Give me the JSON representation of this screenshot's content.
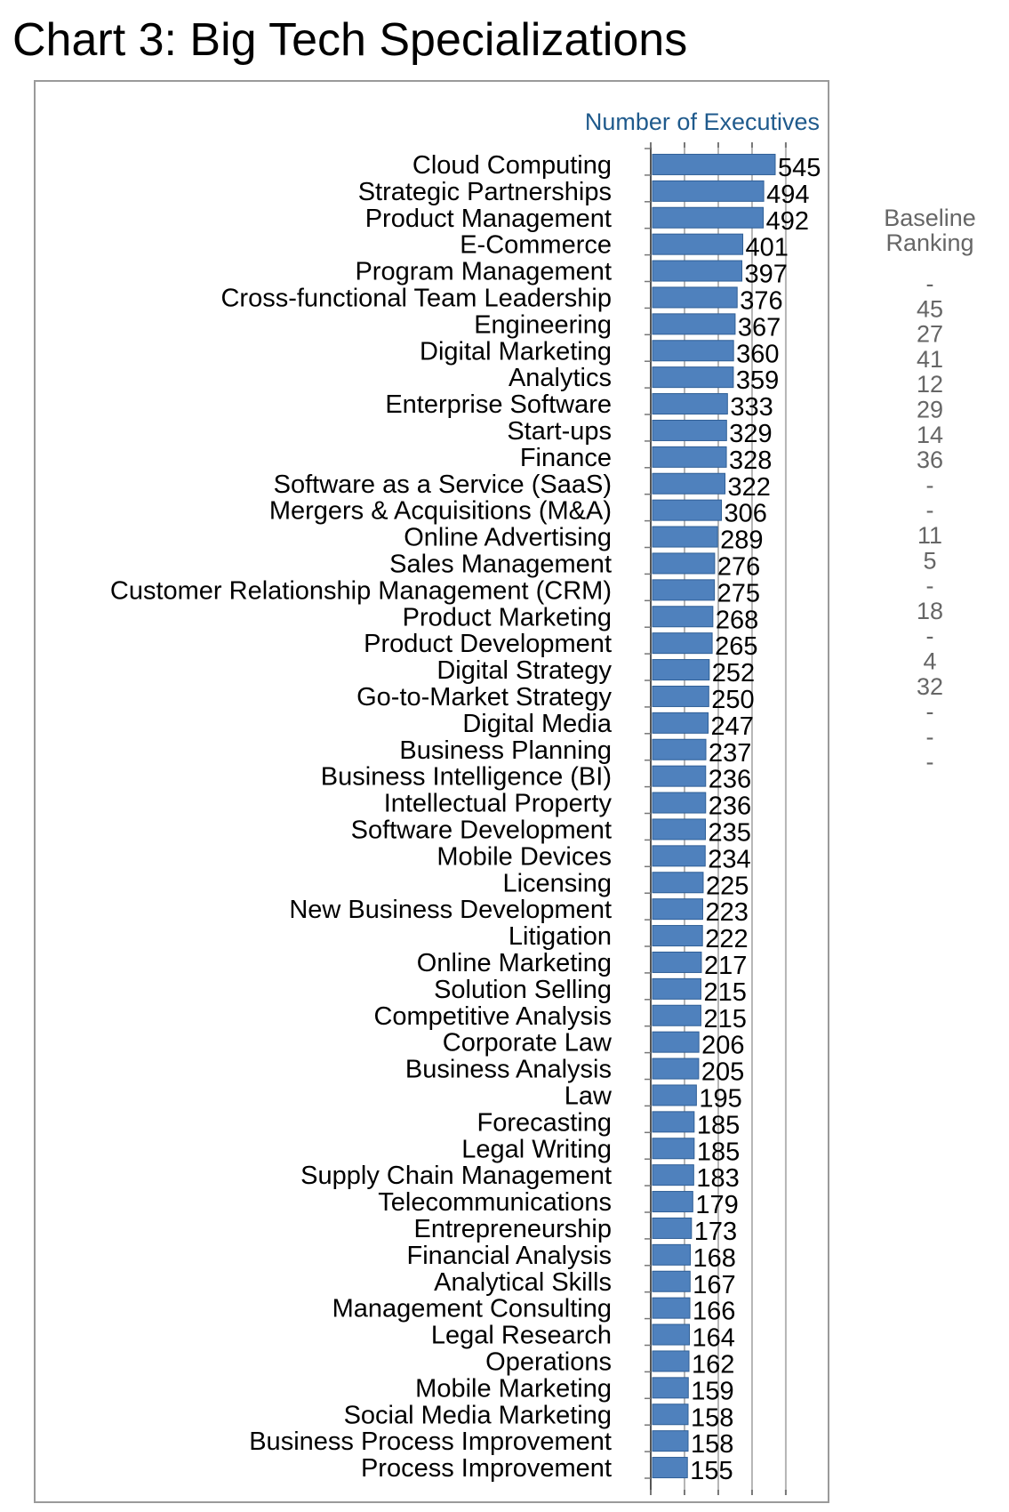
{
  "page_title": "Chart 3: Big Tech Specializations",
  "chart_data": {
    "type": "bar",
    "orientation": "horizontal",
    "title": "Chart 3: Big Tech Specializations",
    "value_axis_title": "Number of Executives",
    "grid": true,
    "bar_color": "#4f81bd",
    "xlim": [
      0,
      600
    ],
    "categories": [
      "Cloud Computing",
      "Strategic Partnerships",
      "Product Management",
      "E-Commerce",
      "Program Management",
      "Cross-functional Team Leadership",
      "Engineering",
      "Digital Marketing",
      "Analytics",
      "Enterprise Software",
      "Start-ups",
      "Finance",
      "Software as a Service (SaaS)",
      "Mergers & Acquisitions (M&A)",
      "Online Advertising",
      "Sales Management",
      "Customer Relationship Management (CRM)",
      "Product Marketing",
      "Product Development",
      "Digital Strategy",
      "Go-to-Market Strategy",
      "Digital Media",
      "Business Planning",
      "Business Intelligence (BI)",
      "Intellectual Property",
      "Software Development",
      "Mobile Devices",
      "Licensing",
      "New Business Development",
      "Litigation",
      "Online Marketing",
      "Solution Selling",
      "Competitive Analysis",
      "Corporate Law",
      "Business Analysis",
      "Law",
      "Forecasting",
      "Legal Writing",
      "Supply Chain Management",
      "Telecommunications",
      "Entrepreneurship",
      "Financial Analysis",
      "Analytical Skills",
      "Management Consulting",
      "Legal Research",
      "Operations",
      "Mobile Marketing",
      "Social Media Marketing",
      "Business Process Improvement",
      "Process Improvement"
    ],
    "values": [
      545,
      494,
      492,
      401,
      397,
      376,
      367,
      360,
      359,
      333,
      329,
      328,
      322,
      306,
      289,
      276,
      275,
      268,
      265,
      252,
      250,
      247,
      237,
      236,
      236,
      235,
      234,
      225,
      223,
      222,
      217,
      215,
      215,
      206,
      205,
      195,
      185,
      185,
      183,
      179,
      173,
      168,
      167,
      166,
      164,
      162,
      159,
      158,
      158,
      155
    ],
    "baseline_ranking": {
      "header": [
        "Baseline",
        "Ranking"
      ],
      "values": [
        "-",
        "45",
        "27",
        "41",
        "12",
        "29",
        "14",
        "36",
        "-",
        "-",
        "11",
        "5",
        "-",
        "18",
        "-",
        "4",
        "32",
        "-",
        "-",
        "-"
      ]
    }
  }
}
